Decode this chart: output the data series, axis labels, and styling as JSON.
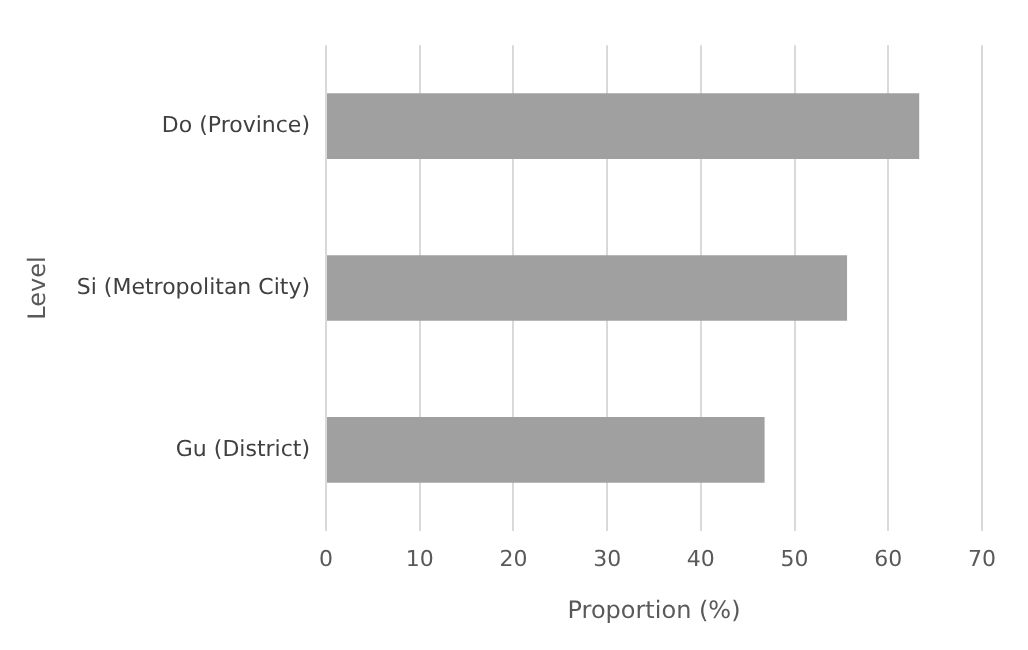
{
  "chart_data": {
    "type": "bar",
    "orientation": "horizontal",
    "categories": [
      "Do (Province)",
      "Si (Metropolitan City)",
      "Gu (District)"
    ],
    "values": [
      63.3,
      55.6,
      46.8
    ],
    "color": "#a0a0a0",
    "xlim": [
      0,
      70
    ],
    "xticks": [
      0,
      10,
      20,
      30,
      40,
      50,
      60,
      70
    ],
    "xlabel": "Proportion (%)",
    "ylabel": "Level",
    "grid": "x",
    "legend": false
  }
}
